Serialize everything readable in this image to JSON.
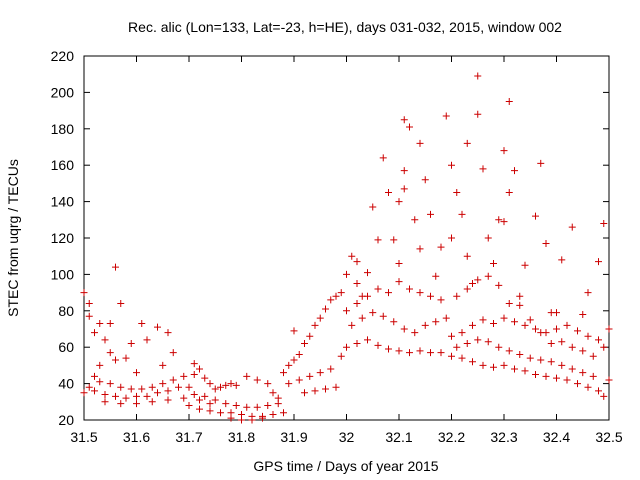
{
  "chart_data": {
    "type": "scatter",
    "title": "Rec. alic (Lon=133, Lat=-23, h=HE), days 031-032, 2015, window 002",
    "xlabel": "GPS time / Days of year 2015",
    "ylabel": "STEC from uqrg / TECUs",
    "xlim": [
      31.5,
      32.5
    ],
    "ylim": [
      20,
      220
    ],
    "x_ticks": [
      31.5,
      31.6,
      31.7,
      31.8,
      31.9,
      32.0,
      32.1,
      32.2,
      32.3,
      32.4,
      32.5
    ],
    "x_tick_labels": [
      "31.5",
      "31.6",
      "31.7",
      "31.8",
      "31.9",
      "32",
      "32.1",
      "32.2",
      "32.3",
      "32.4",
      "32.5"
    ],
    "y_ticks": [
      20,
      40,
      60,
      80,
      100,
      120,
      140,
      160,
      180,
      200,
      220
    ],
    "y_tick_labels": [
      "20",
      "40",
      "60",
      "80",
      "100",
      "120",
      "140",
      "160",
      "180",
      "200",
      "220"
    ],
    "grid": false,
    "marker": "+",
    "series": [
      {
        "color": "#cc0000",
        "points": [
          [
            31.5,
            90
          ],
          [
            31.51,
            84
          ],
          [
            31.51,
            77
          ],
          [
            31.52,
            68
          ],
          [
            31.53,
            73
          ],
          [
            31.54,
            64
          ],
          [
            31.55,
            73
          ],
          [
            31.56,
            104
          ],
          [
            31.57,
            84
          ],
          [
            31.55,
            57
          ],
          [
            31.53,
            50
          ],
          [
            31.52,
            44
          ],
          [
            31.51,
            38
          ],
          [
            31.5,
            35
          ],
          [
            31.52,
            36
          ],
          [
            31.54,
            34
          ],
          [
            31.56,
            33
          ],
          [
            31.58,
            32
          ],
          [
            31.6,
            33
          ],
          [
            31.62,
            33
          ],
          [
            31.64,
            35
          ],
          [
            31.66,
            36
          ],
          [
            31.68,
            38
          ],
          [
            31.7,
            38
          ],
          [
            31.53,
            41
          ],
          [
            31.55,
            40
          ],
          [
            31.57,
            38
          ],
          [
            31.59,
            37
          ],
          [
            31.61,
            37
          ],
          [
            31.63,
            38
          ],
          [
            31.65,
            40
          ],
          [
            31.67,
            42
          ],
          [
            31.69,
            44
          ],
          [
            31.71,
            45
          ],
          [
            31.56,
            53
          ],
          [
            31.58,
            54
          ],
          [
            31.59,
            62
          ],
          [
            31.61,
            73
          ],
          [
            31.62,
            64
          ],
          [
            31.64,
            71
          ],
          [
            31.66,
            68
          ],
          [
            31.67,
            57
          ],
          [
            31.65,
            50
          ],
          [
            31.6,
            46
          ],
          [
            31.54,
            30
          ],
          [
            31.57,
            29
          ],
          [
            31.6,
            29
          ],
          [
            31.63,
            30
          ],
          [
            31.66,
            31
          ],
          [
            31.69,
            32
          ],
          [
            31.72,
            31
          ],
          [
            31.74,
            29
          ],
          [
            31.71,
            51
          ],
          [
            31.72,
            48
          ],
          [
            31.73,
            43
          ],
          [
            31.74,
            40
          ],
          [
            31.75,
            37
          ],
          [
            31.76,
            38
          ],
          [
            31.77,
            39
          ],
          [
            31.78,
            40
          ],
          [
            31.79,
            39
          ],
          [
            31.7,
            28
          ],
          [
            31.72,
            26
          ],
          [
            31.74,
            25
          ],
          [
            31.76,
            24
          ],
          [
            31.78,
            24
          ],
          [
            31.8,
            23
          ],
          [
            31.82,
            22
          ],
          [
            31.84,
            22
          ],
          [
            31.86,
            23
          ],
          [
            31.88,
            24
          ],
          [
            31.71,
            34
          ],
          [
            31.73,
            33
          ],
          [
            31.75,
            31
          ],
          [
            31.77,
            29
          ],
          [
            31.79,
            28
          ],
          [
            31.81,
            27
          ],
          [
            31.83,
            27
          ],
          [
            31.85,
            28
          ],
          [
            31.87,
            29
          ],
          [
            31.78,
            21
          ],
          [
            31.8,
            20
          ],
          [
            31.82,
            20
          ],
          [
            31.84,
            21
          ],
          [
            31.81,
            44
          ],
          [
            31.83,
            42
          ],
          [
            31.85,
            40
          ],
          [
            31.86,
            35
          ],
          [
            31.87,
            32
          ],
          [
            31.88,
            46
          ],
          [
            31.89,
            50
          ],
          [
            31.9,
            53
          ],
          [
            31.91,
            56
          ],
          [
            31.9,
            69
          ],
          [
            31.92,
            62
          ],
          [
            31.93,
            66
          ],
          [
            31.94,
            72
          ],
          [
            31.95,
            76
          ],
          [
            31.96,
            81
          ],
          [
            31.97,
            86
          ],
          [
            31.98,
            88
          ],
          [
            31.99,
            90
          ],
          [
            31.89,
            40
          ],
          [
            31.91,
            42
          ],
          [
            31.93,
            44
          ],
          [
            31.95,
            46
          ],
          [
            31.97,
            48
          ],
          [
            31.99,
            55
          ],
          [
            31.92,
            35
          ],
          [
            31.94,
            36
          ],
          [
            31.96,
            37
          ],
          [
            31.98,
            38
          ],
          [
            32.0,
            100
          ],
          [
            32.01,
            110
          ],
          [
            32.02,
            107
          ],
          [
            32.02,
            95
          ],
          [
            32.03,
            88
          ],
          [
            32.04,
            101
          ],
          [
            32.05,
            137
          ],
          [
            32.06,
            119
          ],
          [
            32.07,
            164
          ],
          [
            32.08,
            145
          ],
          [
            32.09,
            119
          ],
          [
            32.1,
            140
          ],
          [
            32.1,
            106
          ],
          [
            32.11,
            147
          ],
          [
            32.11,
            157
          ],
          [
            32.12,
            181
          ],
          [
            32.11,
            185
          ],
          [
            32.13,
            130
          ],
          [
            32.14,
            172
          ],
          [
            32.14,
            114
          ],
          [
            32.15,
            152
          ],
          [
            32.16,
            133
          ],
          [
            32.17,
            99
          ],
          [
            32.0,
            80
          ],
          [
            32.02,
            84
          ],
          [
            32.04,
            88
          ],
          [
            32.06,
            92
          ],
          [
            32.08,
            90
          ],
          [
            32.1,
            96
          ],
          [
            32.12,
            92
          ],
          [
            32.14,
            90
          ],
          [
            32.16,
            88
          ],
          [
            32.18,
            86
          ],
          [
            32.0,
            60
          ],
          [
            32.02,
            62
          ],
          [
            32.04,
            64
          ],
          [
            32.06,
            61
          ],
          [
            32.08,
            59
          ],
          [
            32.1,
            58
          ],
          [
            32.12,
            57
          ],
          [
            32.14,
            58
          ],
          [
            32.16,
            57
          ],
          [
            32.18,
            57
          ],
          [
            32.01,
            72
          ],
          [
            32.03,
            76
          ],
          [
            32.05,
            79
          ],
          [
            32.07,
            77
          ],
          [
            32.09,
            74
          ],
          [
            32.11,
            70
          ],
          [
            32.13,
            68
          ],
          [
            32.15,
            72
          ],
          [
            32.17,
            74
          ],
          [
            32.19,
            76
          ],
          [
            32.18,
            115
          ],
          [
            32.19,
            187
          ],
          [
            32.2,
            160
          ],
          [
            32.21,
            145
          ],
          [
            32.2,
            120
          ],
          [
            32.22,
            133
          ],
          [
            32.23,
            172
          ],
          [
            32.23,
            110
          ],
          [
            32.24,
            95
          ],
          [
            32.25,
            209
          ],
          [
            32.25,
            188
          ],
          [
            32.26,
            158
          ],
          [
            32.27,
            120
          ],
          [
            32.28,
            106
          ],
          [
            32.29,
            130
          ],
          [
            32.3,
            168
          ],
          [
            32.3,
            129
          ],
          [
            32.31,
            195
          ],
          [
            32.31,
            145
          ],
          [
            32.32,
            157
          ],
          [
            32.33,
            88
          ],
          [
            32.34,
            105
          ],
          [
            32.36,
            132
          ],
          [
            32.37,
            161
          ],
          [
            32.38,
            117
          ],
          [
            32.39,
            79
          ],
          [
            32.4,
            79
          ],
          [
            32.41,
            108
          ],
          [
            32.43,
            126
          ],
          [
            32.45,
            78
          ],
          [
            32.46,
            90
          ],
          [
            32.48,
            107
          ],
          [
            32.49,
            128
          ],
          [
            32.2,
            66
          ],
          [
            32.22,
            68
          ],
          [
            32.24,
            72
          ],
          [
            32.26,
            75
          ],
          [
            32.28,
            73
          ],
          [
            32.3,
            76
          ],
          [
            32.32,
            74
          ],
          [
            32.34,
            72
          ],
          [
            32.36,
            70
          ],
          [
            32.38,
            68
          ],
          [
            32.4,
            70
          ],
          [
            32.42,
            72
          ],
          [
            32.44,
            69
          ],
          [
            32.46,
            66
          ],
          [
            32.48,
            64
          ],
          [
            32.2,
            55
          ],
          [
            32.22,
            54
          ],
          [
            32.24,
            52
          ],
          [
            32.26,
            50
          ],
          [
            32.28,
            49
          ],
          [
            32.3,
            50
          ],
          [
            32.32,
            48
          ],
          [
            32.34,
            47
          ],
          [
            32.36,
            45
          ],
          [
            32.38,
            44
          ],
          [
            32.4,
            43
          ],
          [
            32.42,
            42
          ],
          [
            32.44,
            40
          ],
          [
            32.46,
            38
          ],
          [
            32.48,
            36
          ],
          [
            32.49,
            33
          ],
          [
            32.5,
            42
          ],
          [
            32.21,
            88
          ],
          [
            32.23,
            92
          ],
          [
            32.25,
            97
          ],
          [
            32.27,
            99
          ],
          [
            32.29,
            94
          ],
          [
            32.31,
            84
          ],
          [
            32.33,
            83
          ],
          [
            32.35,
            75
          ],
          [
            32.37,
            68
          ],
          [
            32.39,
            62
          ],
          [
            32.41,
            63
          ],
          [
            32.43,
            60
          ],
          [
            32.45,
            58
          ],
          [
            32.47,
            55
          ],
          [
            32.49,
            60
          ],
          [
            32.21,
            60
          ],
          [
            32.23,
            62
          ],
          [
            32.25,
            64
          ],
          [
            32.27,
            63
          ],
          [
            32.29,
            60
          ],
          [
            32.31,
            58
          ],
          [
            32.33,
            56
          ],
          [
            32.35,
            54
          ],
          [
            32.37,
            53
          ],
          [
            32.39,
            52
          ],
          [
            32.41,
            50
          ],
          [
            32.43,
            48
          ],
          [
            32.45,
            46
          ],
          [
            32.47,
            44
          ],
          [
            32.5,
            70
          ]
        ]
      }
    ]
  }
}
